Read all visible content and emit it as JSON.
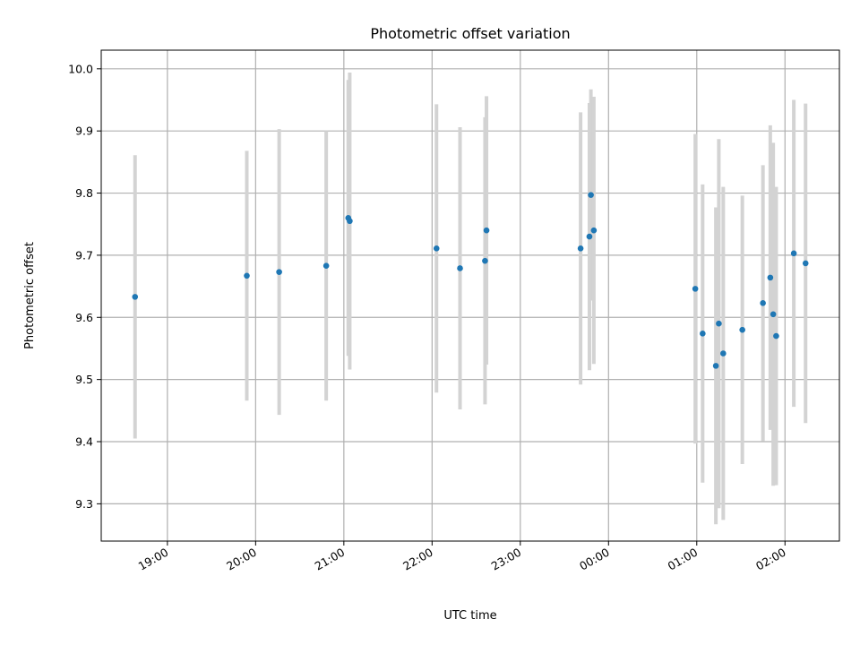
{
  "chart_data": {
    "type": "scatter",
    "title": "Photometric offset variation",
    "xlabel": "UTC time",
    "ylabel": "Photometric offset",
    "x_axis": {
      "kind": "time",
      "ticks": [
        "19:00",
        "20:00",
        "21:00",
        "22:00",
        "23:00",
        "00:00",
        "01:00",
        "02:00"
      ],
      "range": [
        "18:15",
        "02:37"
      ]
    },
    "y_axis": {
      "ticks": [
        "9.3",
        "9.4",
        "9.5",
        "9.6",
        "9.7",
        "9.8",
        "9.9",
        "10.0"
      ],
      "range": [
        9.24,
        10.03
      ]
    },
    "grid": true,
    "colors": {
      "points": "#1f77b4",
      "errorbars": "#d3d3d3"
    },
    "points": [
      {
        "t": "18:38",
        "y": 9.633,
        "err": 0.228
      },
      {
        "t": "19:54",
        "y": 9.667,
        "err": 0.201
      },
      {
        "t": "20:16",
        "y": 9.673,
        "err": 0.23
      },
      {
        "t": "20:48",
        "y": 9.683,
        "err": 0.217
      },
      {
        "t": "21:03",
        "y": 9.76,
        "err": 0.222
      },
      {
        "t": "21:04",
        "y": 9.755,
        "err": 0.239
      },
      {
        "t": "22:03",
        "y": 9.711,
        "err": 0.232
      },
      {
        "t": "22:19",
        "y": 9.679,
        "err": 0.227
      },
      {
        "t": "22:36",
        "y": 9.691,
        "err": 0.231
      },
      {
        "t": "22:37",
        "y": 9.74,
        "err": 0.216
      },
      {
        "t": "23:41",
        "y": 9.711,
        "err": 0.219
      },
      {
        "t": "23:47",
        "y": 9.73,
        "err": 0.215
      },
      {
        "t": "23:48",
        "y": 9.797,
        "err": 0.17
      },
      {
        "t": "23:50",
        "y": 9.74,
        "err": 0.215
      },
      {
        "t": "00:59",
        "y": 9.646,
        "err": 0.249
      },
      {
        "t": "01:04",
        "y": 9.574,
        "err": 0.24
      },
      {
        "t": "01:13",
        "y": 9.522,
        "err": 0.255
      },
      {
        "t": "01:15",
        "y": 9.59,
        "err": 0.297
      },
      {
        "t": "01:18",
        "y": 9.542,
        "err": 0.268
      },
      {
        "t": "01:31",
        "y": 9.58,
        "err": 0.216
      },
      {
        "t": "01:45",
        "y": 9.623,
        "err": 0.222
      },
      {
        "t": "01:50",
        "y": 9.664,
        "err": 0.245
      },
      {
        "t": "01:52",
        "y": 9.605,
        "err": 0.276
      },
      {
        "t": "01:54",
        "y": 9.57,
        "err": 0.24
      },
      {
        "t": "02:06",
        "y": 9.703,
        "err": 0.247
      },
      {
        "t": "02:14",
        "y": 9.687,
        "err": 0.257
      }
    ]
  }
}
